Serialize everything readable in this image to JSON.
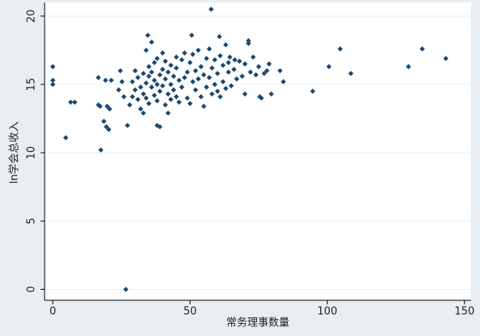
{
  "chart_data": {
    "type": "scatter",
    "x_label": "常务理事数量",
    "y_label": "ln学会总收入",
    "color": "#1a476f",
    "grid": true,
    "xlim": [
      -3,
      152.4
    ],
    "ylim": [
      -0.8,
      21
    ],
    "xticks": [
      0,
      50,
      100,
      150
    ],
    "yticks": [
      0,
      5,
      10,
      15,
      20
    ],
    "x": [
      0,
      0,
      0,
      4.7,
      6.5,
      8,
      16.6,
      16.6,
      17.2,
      17.5,
      18.6,
      19.5,
      20.4,
      19.2,
      21.3,
      19.8,
      20.7,
      26.6,
      27.2,
      24.6,
      25.2,
      24,
      25.9,
      28,
      29,
      29,
      30,
      30,
      31,
      31,
      32,
      32,
      33,
      33,
      33,
      34,
      34,
      34,
      35,
      35,
      35,
      36,
      36,
      36,
      37,
      37,
      37,
      38,
      38,
      38,
      38,
      39,
      39,
      39,
      40,
      40,
      40,
      41,
      41,
      41,
      42,
      42,
      42,
      43,
      43,
      43,
      44,
      44,
      45,
      45,
      45,
      46,
      46,
      47,
      47,
      48,
      48,
      49,
      49,
      50,
      50,
      51,
      51,
      52,
      52,
      53,
      53,
      54,
      54,
      55,
      55,
      56,
      56,
      57,
      57,
      58,
      58,
      59,
      59,
      60,
      60,
      61,
      61,
      62,
      62,
      63,
      63,
      64,
      64,
      65,
      66,
      67,
      68,
      69,
      70,
      70,
      72,
      73,
      74,
      75,
      76,
      77,
      57.7,
      34.6,
      50.6,
      60.7,
      71.3,
      71.3,
      94.7,
      100.6,
      104.7,
      108.6,
      129.6,
      134.6,
      143.2,
      78,
      78.8,
      82.8,
      84,
      79.6,
      75.4,
      66.3,
      64.5
    ],
    "values": [
      16.3,
      15.3,
      15.0,
      11.1,
      13.7,
      13.7,
      15.5,
      13.5,
      13.4,
      10.2,
      12.3,
      11.9,
      11.7,
      15.3,
      15.3,
      13.4,
      13.2,
      0,
      12.0,
      16.0,
      15.2,
      14.6,
      14.1,
      13.5,
      14.1,
      15.2,
      16.0,
      14.6,
      13.9,
      15.5,
      14.8,
      13.2,
      15.8,
      14.3,
      12.9,
      17.5,
      15.1,
      14.0,
      16.3,
      15.6,
      13.6,
      18.1,
      14.8,
      15.9,
      14.2,
      16.6,
      15.3,
      12.0,
      13.8,
      15.0,
      16.9,
      11.9,
      14.5,
      15.7,
      17.3,
      16.1,
      14.9,
      15.4,
      13.5,
      16.7,
      14.3,
      15.9,
      12.9,
      15.0,
      16.4,
      13.9,
      14.6,
      15.6,
      16.2,
      14.1,
      17.0,
      15.3,
      13.7,
      16.8,
      14.8,
      15.5,
      17.3,
      14.0,
      15.9,
      16.6,
      13.6,
      15.2,
      17.2,
      14.6,
      16.0,
      15.4,
      17.5,
      14.1,
      16.3,
      15.7,
      13.4,
      16.9,
      14.8,
      15.5,
      17.6,
      14.3,
      16.2,
      15.0,
      16.8,
      14.5,
      15.8,
      17.1,
      14.1,
      16.4,
      15.2,
      17.9,
      14.7,
      15.9,
      16.6,
      14.9,
      16.1,
      15.4,
      16.7,
      15.6,
      14.3,
      16.5,
      15.9,
      17.0,
      15.7,
      16.3,
      14.0,
      15.8,
      20.5,
      18.6,
      18.6,
      18.5,
      18.2,
      18.0,
      14.5,
      16.3,
      17.6,
      15.8,
      16.3,
      17.6,
      16.9,
      16.0,
      16.5,
      16.0,
      15.2,
      14.3,
      14.1,
      16.8,
      17.0
    ]
  }
}
